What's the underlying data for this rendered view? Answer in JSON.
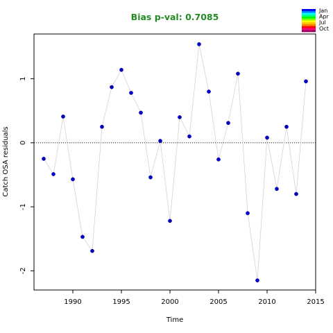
{
  "chart_data": {
    "type": "scatter",
    "title": "Bias p-val: 0.7085",
    "title_color": "#228b22",
    "xlabel": "Time",
    "ylabel": "Catch OSA residuals",
    "xlim": [
      1986,
      2015
    ],
    "ylim": [
      -2.3,
      1.7
    ],
    "x_ticks": [
      1990,
      1995,
      2000,
      2005,
      2010,
      2015
    ],
    "y_ticks": [
      -2,
      -1,
      0,
      1
    ],
    "reference_line": 0,
    "point_color": "#0000cd",
    "line_color": "#d3d3d3",
    "grid": false,
    "x": [
      1987,
      1988,
      1989,
      1990,
      1991,
      1992,
      1993,
      1994,
      1995,
      1996,
      1997,
      1998,
      1999,
      2000,
      2001,
      2002,
      2003,
      2004,
      2005,
      2006,
      2007,
      2008,
      2009,
      2010,
      2011,
      2012,
      2013,
      2014
    ],
    "y": [
      -0.25,
      -0.49,
      0.41,
      -0.57,
      -1.47,
      -1.69,
      0.25,
      0.87,
      1.14,
      0.78,
      0.47,
      -0.54,
      0.03,
      -1.22,
      0.4,
      0.1,
      1.54,
      0.8,
      -0.26,
      0.31,
      1.08,
      -1.1,
      -2.15,
      0.08,
      -0.72,
      0.25,
      -0.8,
      0.96
    ],
    "legend": {
      "placement": "top-right",
      "labels": [
        "Jan",
        "Apr",
        "Jul",
        "Oct"
      ],
      "colors": [
        "#0000ff",
        "#0080ff",
        "#00ffff",
        "#00ff80",
        "#00ff00",
        "#80ff00",
        "#ffff00",
        "#ffbf00",
        "#ff8000",
        "#ff0000",
        "#ff0080",
        "#a00060"
      ]
    }
  }
}
